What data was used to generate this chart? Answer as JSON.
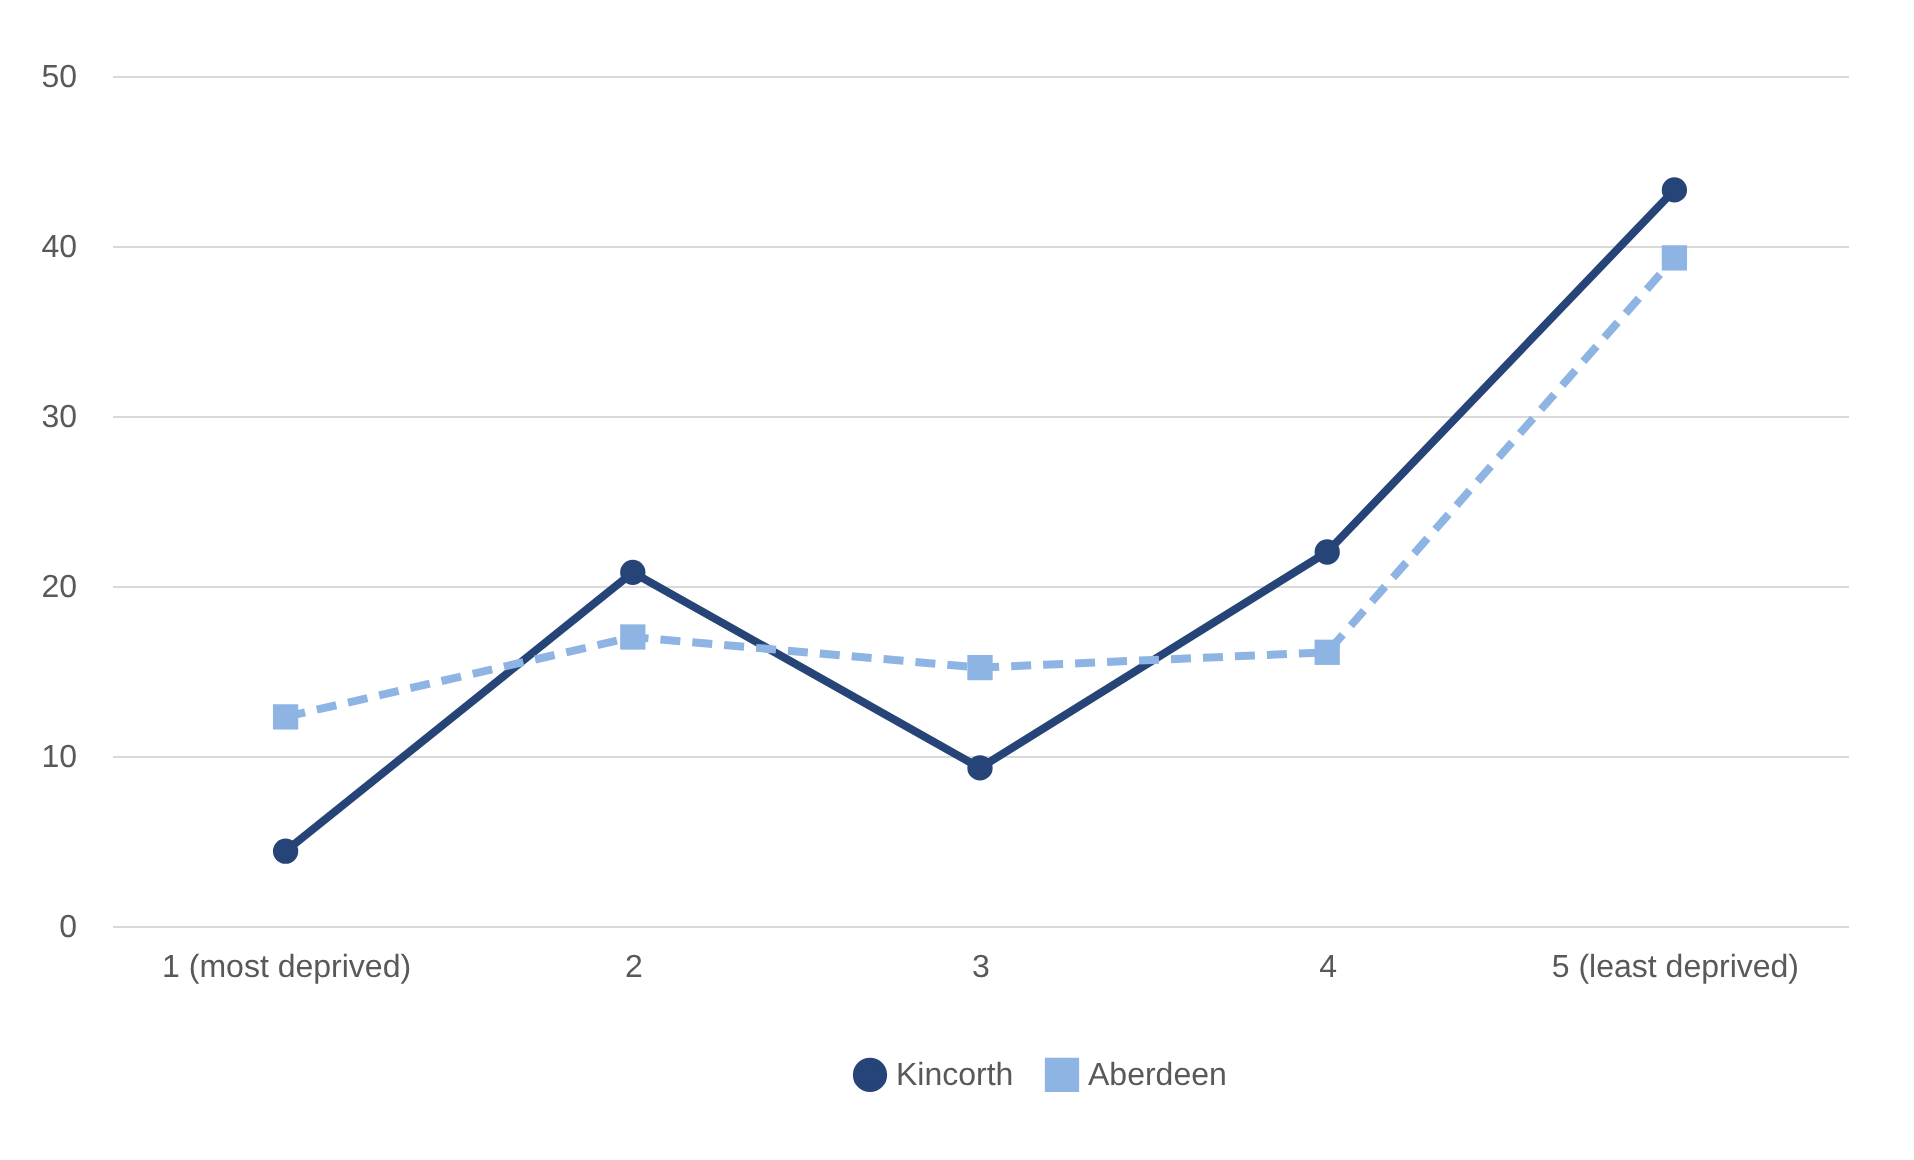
{
  "chart_data": {
    "type": "line",
    "categories": [
      "1 (most deprived)",
      "2",
      "3",
      "4",
      "5 (least deprived)"
    ],
    "series": [
      {
        "name": "Kincorth",
        "color": "#264478",
        "values": [
          4.4,
          20.8,
          9.3,
          22,
          43.3
        ],
        "marker": "circle",
        "line_style": "solid"
      },
      {
        "name": "Aberdeen",
        "color": "#8eb4e3",
        "values": [
          12.3,
          17,
          15.2,
          16.1,
          39.3
        ],
        "marker": "square",
        "line_style": "dashed"
      }
    ],
    "ylim": [
      0,
      50
    ],
    "yticks": [
      0,
      10,
      20,
      30,
      40,
      50
    ],
    "grid": "y",
    "legend": "bottom"
  }
}
